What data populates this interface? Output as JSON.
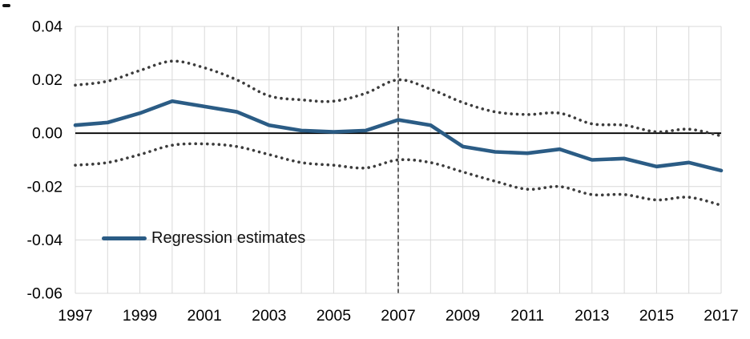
{
  "page": {
    "background": "#FFFFFF"
  },
  "legend": {
    "label": "Regression estimates"
  },
  "colors": {
    "grid": "#D9D9D9",
    "zero_line": "#000000",
    "vline": "#4D4D4D",
    "axis_text": "#000000",
    "regression_line": "#2B5C85",
    "band_dots": "#3C3C3C"
  },
  "chart_data": {
    "type": "line",
    "title": "",
    "xlabel": "",
    "ylabel": "",
    "x": [
      1997,
      1998,
      1999,
      2000,
      2001,
      2002,
      2003,
      2004,
      2005,
      2006,
      2007,
      2008,
      2009,
      2010,
      2011,
      2012,
      2013,
      2014,
      2015,
      2016,
      2017
    ],
    "x_tick_labels": [
      "1997",
      "1999",
      "2001",
      "2003",
      "2005",
      "2007",
      "2009",
      "2011",
      "2013",
      "2015",
      "2017"
    ],
    "y_ticks": [
      0.04,
      0.02,
      0.0,
      -0.02,
      -0.04,
      -0.06
    ],
    "y_tick_labels": [
      "0.04",
      "0.02",
      "0.00",
      "-0.02",
      "-0.04",
      "-0.06"
    ],
    "xlim": [
      1997,
      2017
    ],
    "ylim": [
      -0.06,
      0.04
    ],
    "grid": true,
    "zero_axis_line": true,
    "vline_x": 2007,
    "legend_position": "inside-bottom-left",
    "series": [
      {
        "name": "Regression estimates",
        "line_style": "solid",
        "color": "#2B5C85",
        "values": [
          0.003,
          0.004,
          0.0075,
          0.012,
          0.01,
          0.008,
          0.003,
          0.001,
          0.0005,
          0.001,
          0.005,
          0.003,
          -0.005,
          -0.007,
          -0.0075,
          -0.006,
          -0.01,
          -0.0095,
          -0.0125,
          -0.011,
          -0.014
        ]
      },
      {
        "name": "Upper confidence band (unlabeled dotted)",
        "line_style": "dotted",
        "color": "#3C3C3C",
        "values": [
          0.018,
          0.0195,
          0.0235,
          0.027,
          0.0245,
          0.02,
          0.014,
          0.0125,
          0.012,
          0.015,
          0.02,
          0.0165,
          0.0115,
          0.008,
          0.007,
          0.0075,
          0.0035,
          0.003,
          0.0005,
          0.0015,
          -0.001
        ]
      },
      {
        "name": "Lower confidence band (unlabeled dotted)",
        "line_style": "dotted",
        "color": "#3C3C3C",
        "values": [
          -0.012,
          -0.011,
          -0.008,
          -0.0045,
          -0.004,
          -0.005,
          -0.008,
          -0.011,
          -0.012,
          -0.013,
          -0.01,
          -0.011,
          -0.0145,
          -0.018,
          -0.021,
          -0.02,
          -0.023,
          -0.023,
          -0.025,
          -0.024,
          -0.027
        ]
      }
    ]
  }
}
